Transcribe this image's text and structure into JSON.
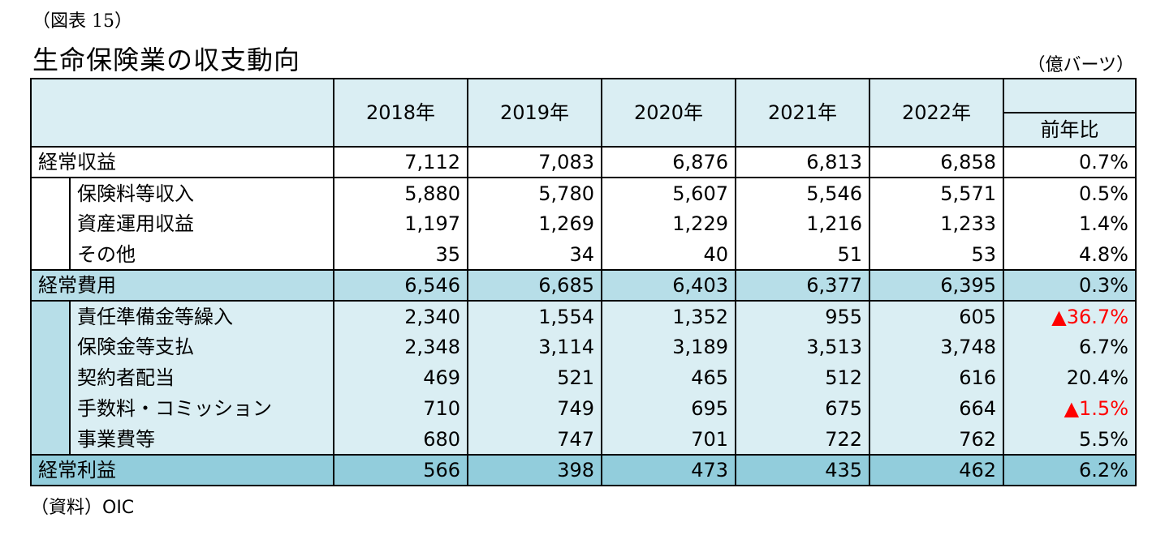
{
  "figure_label": "（図表 15）",
  "title": "生命保険業の収支動向",
  "unit": "（億バーツ）",
  "source": "（資料）OIC",
  "columns": [
    "2018年",
    "2019年",
    "2020年",
    "2021年",
    "2022年"
  ],
  "yoy_header": "前年比",
  "rows": [
    {
      "label": "経常収益",
      "values": [
        "7,112",
        "7,083",
        "6,876",
        "6,813",
        "6,858"
      ],
      "yoy": "0.7%"
    },
    {
      "label": "保険料等収入",
      "values": [
        "5,880",
        "5,780",
        "5,607",
        "5,546",
        "5,571"
      ],
      "yoy": "0.5%"
    },
    {
      "label": "資産運用収益",
      "values": [
        "1,197",
        "1,269",
        "1,229",
        "1,216",
        "1,233"
      ],
      "yoy": "1.4%"
    },
    {
      "label": "その他",
      "values": [
        "35",
        "34",
        "40",
        "51",
        "53"
      ],
      "yoy": "4.8%"
    },
    {
      "label": "経常費用",
      "values": [
        "6,546",
        "6,685",
        "6,403",
        "6,377",
        "6,395"
      ],
      "yoy": "0.3%"
    },
    {
      "label": "責任準備金等繰入",
      "values": [
        "2,340",
        "1,554",
        "1,352",
        "955",
        "605"
      ],
      "yoy": "▲36.7%"
    },
    {
      "label": "保険金等支払",
      "values": [
        "2,348",
        "3,114",
        "3,189",
        "3,513",
        "3,748"
      ],
      "yoy": "6.7%"
    },
    {
      "label": "契約者配当",
      "values": [
        "469",
        "521",
        "465",
        "512",
        "616"
      ],
      "yoy": "20.4%"
    },
    {
      "label": "手数料・コミッション",
      "values": [
        "710",
        "749",
        "695",
        "675",
        "664"
      ],
      "yoy": "▲1.5%"
    },
    {
      "label": "事業費等",
      "values": [
        "680",
        "747",
        "701",
        "722",
        "762"
      ],
      "yoy": "5.5%"
    },
    {
      "label": "経常利益",
      "values": [
        "566",
        "398",
        "473",
        "435",
        "462"
      ],
      "yoy": "6.2%"
    }
  ],
  "colors": {
    "light_bg": "#daeef3",
    "mid_bg": "#b7dee8",
    "dark_bg": "#92cddc",
    "negative_text": "#ff0000"
  }
}
